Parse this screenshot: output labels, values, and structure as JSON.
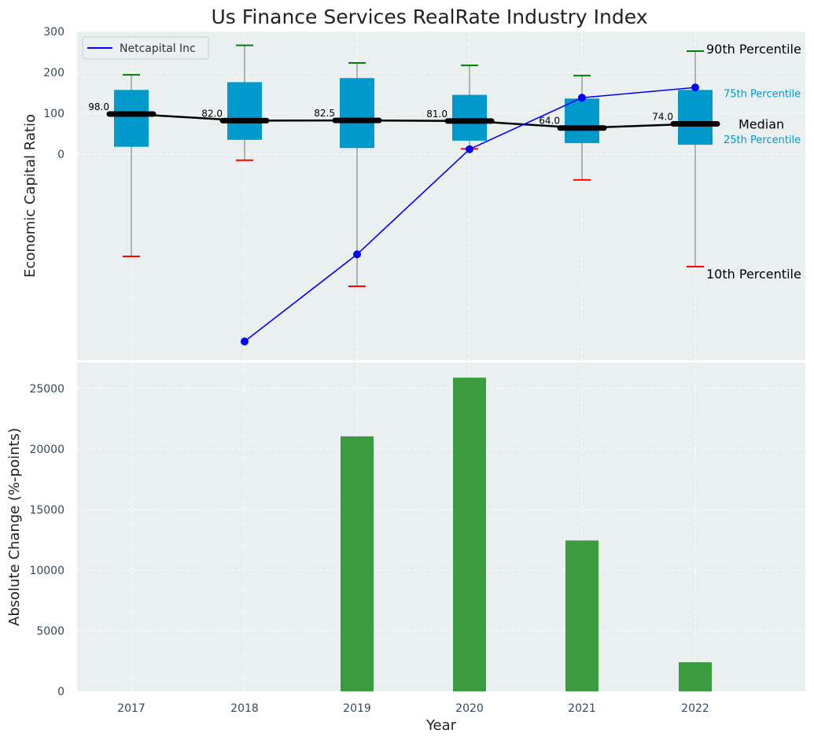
{
  "chart_data": {
    "title": "Us Finance Services RealRate Industry Index",
    "xlabel": "Year",
    "categories": [
      "2017",
      "2018",
      "2019",
      "2020",
      "2021",
      "2022"
    ],
    "top_panel": {
      "type": "box",
      "ylabel": "Economic Capital Ratio",
      "ylim": [
        -500,
        300
      ],
      "yticks": [
        "300",
        "200",
        "100",
        "0"
      ],
      "boxes": [
        {
          "p10": -250,
          "p25": 18,
          "median": 98.0,
          "p75": 157,
          "p90": 194
        },
        {
          "p10": -15,
          "p25": 35,
          "median": 82.0,
          "p75": 176,
          "p90": 266
        },
        {
          "p10": -323,
          "p25": 15,
          "median": 82.5,
          "p75": 186,
          "p90": 223
        },
        {
          "p10": 13,
          "p25": 33,
          "median": 81.0,
          "p75": 145,
          "p90": 217
        },
        {
          "p10": -63,
          "p25": 27,
          "median": 64.0,
          "p75": 136,
          "p90": 192
        },
        {
          "p10": -275,
          "p25": 23,
          "median": 74.0,
          "p75": 157,
          "p90": 252
        }
      ],
      "median_labels": [
        "98.0",
        "82.0",
        "82.5",
        "81.0",
        "64.0",
        "74.0"
      ],
      "company_series": {
        "name": "Netcapital Inc",
        "color": "#0000ff",
        "values": [
          null,
          -458,
          -245,
          12,
          138,
          163
        ]
      },
      "annotations": {
        "p90": "90th Percentile",
        "p75": "75th Percentile",
        "median": "Median",
        "p25": "25th Percentile",
        "p10": "10th Percentile"
      },
      "legend_position": "top-left"
    },
    "bottom_panel": {
      "type": "bar",
      "ylabel": "Absolute Change (%-points)",
      "ylim": [
        0,
        27300
      ],
      "yticks": [
        "0",
        "5000",
        "10000",
        "15000",
        "20000",
        "25000"
      ],
      "values": [
        0,
        0,
        21050,
        25900,
        12450,
        2400
      ]
    },
    "colors": {
      "background": "#eaeff0",
      "box": "#0099cc",
      "median": "#000000",
      "whisker_top": "#008000",
      "whisker_bottom": "#ff0000",
      "company": "#0000ff",
      "bar": "#3a9b3f"
    }
  }
}
